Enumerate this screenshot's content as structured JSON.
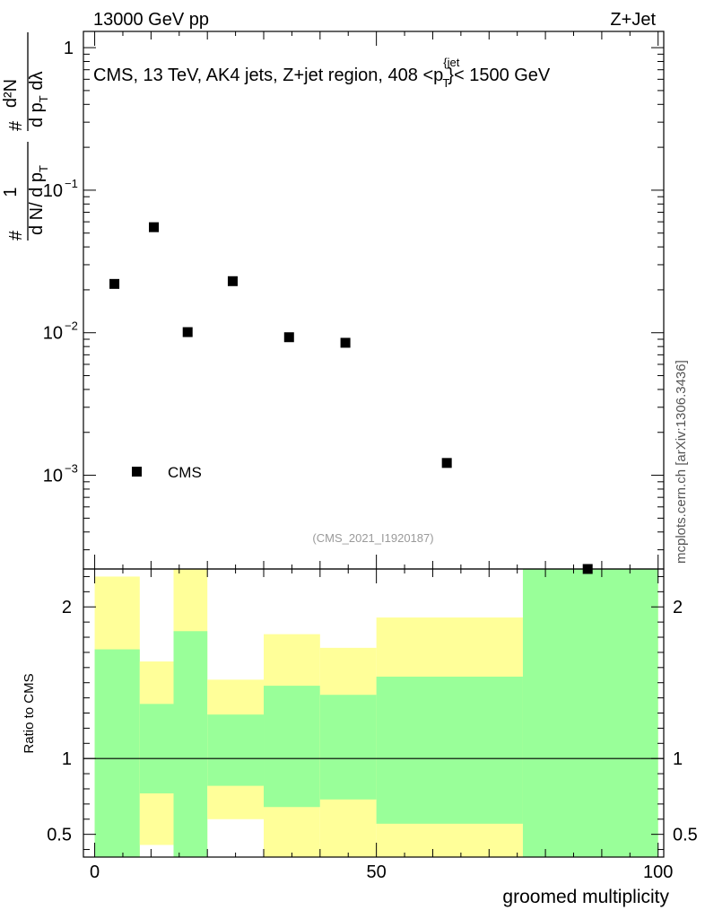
{
  "header": {
    "energy": "13000 GeV pp",
    "process": "Z+Jet"
  },
  "watermark": "mcplots.cern.ch [arXiv:1306.3436]",
  "analysis_id": "(CMS_2021_I1920187)",
  "chart_data": [
    {
      "type": "scatter",
      "panel": "main",
      "title": "CMS, 13 TeV, AK4 jets, Z+jet region, 408 <p",
      "title_sup": "{jet",
      "title_sub": "T",
      "title_tail": "}< 1500 GeV",
      "ylabel_lead": "#",
      "ylabel_frac_num": "1",
      "ylabel_frac_den": "d N/ d p",
      "ylabel_frac_den_sub": "T",
      "ylabel_hash": "#",
      "ylabel_frac2_num": "d²N",
      "ylabel_frac2_den": "d p",
      "ylabel_frac2_den_sub": "T",
      "ylabel_frac2_den_tail": " dλ",
      "yscale": "log",
      "ylim": [
        0.00022,
        1.3
      ],
      "xlim": [
        -2,
        101
      ],
      "y_ticks": [
        {
          "value": 1,
          "label": "1"
        },
        {
          "value": 0.1,
          "label": "10",
          "exp": "−1"
        },
        {
          "value": 0.01,
          "label": "10",
          "exp": "−2"
        },
        {
          "value": 0.001,
          "label": "10",
          "exp": "−3"
        }
      ],
      "legend": {
        "label": "CMS",
        "position": "lower-left"
      },
      "series": [
        {
          "name": "CMS",
          "x": [
            3.5,
            10.5,
            16.5,
            24.5,
            34.5,
            44.5,
            62.5,
            87.5
          ],
          "y": [
            0.022,
            0.055,
            0.0101,
            0.023,
            0.0093,
            0.0085,
            0.00122,
            0.00022
          ]
        }
      ]
    },
    {
      "type": "area",
      "panel": "ratio",
      "ylabel": "Ratio to CMS",
      "xlabel": "groomed multiplicity",
      "ylim": [
        0.35,
        2.25
      ],
      "xlim": [
        -2,
        101
      ],
      "y_ticks": [
        {
          "value": 0.5,
          "label": "0.5"
        },
        {
          "value": 1,
          "label": "1"
        },
        {
          "value": 2,
          "label": "2"
        }
      ],
      "x_ticks": [
        {
          "value": 0,
          "label": "0"
        },
        {
          "value": 50,
          "label": "50"
        },
        {
          "value": 100,
          "label": "100"
        }
      ],
      "reference": 1,
      "bins": [
        {
          "lo": 0,
          "hi": 8,
          "yellow": [
            0.35,
            2.2
          ],
          "green": [
            0.35,
            1.72
          ]
        },
        {
          "lo": 8,
          "hi": 14,
          "yellow": [
            0.43,
            1.64
          ],
          "green": [
            0.77,
            1.36
          ]
        },
        {
          "lo": 14,
          "hi": 20,
          "yellow": [
            0.35,
            2.25
          ],
          "green": [
            0.35,
            1.84
          ]
        },
        {
          "lo": 20,
          "hi": 30,
          "yellow": [
            0.6,
            1.52
          ],
          "green": [
            0.82,
            1.29
          ]
        },
        {
          "lo": 30,
          "hi": 40,
          "yellow": [
            0.35,
            1.82
          ],
          "green": [
            0.68,
            1.48
          ]
        },
        {
          "lo": 40,
          "hi": 50,
          "yellow": [
            0.35,
            1.73
          ],
          "green": [
            0.73,
            1.42
          ]
        },
        {
          "lo": 50,
          "hi": 76,
          "yellow": [
            0.35,
            1.93
          ],
          "green": [
            0.57,
            1.54
          ]
        },
        {
          "lo": 76,
          "hi": 100,
          "yellow": [
            0.35,
            2.25
          ],
          "green": [
            0.35,
            2.25
          ]
        }
      ],
      "colors": {
        "green": "#99ff99",
        "yellow": "#ffff99",
        "line": "#000000"
      }
    }
  ]
}
